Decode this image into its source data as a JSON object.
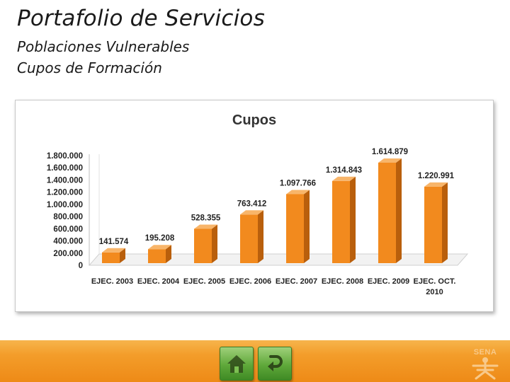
{
  "slide": {
    "title": "Portafolio de Servicios",
    "subtitle1": "Poblaciones Vulnerables",
    "subtitle2": "Cupos de Formación"
  },
  "chart_data": {
    "type": "bar",
    "title": "Cupos",
    "categories": [
      "EJEC. 2003",
      "EJEC. 2004",
      "EJEC. 2005",
      "EJEC. 2006",
      "EJEC. 2007",
      "EJEC. 2008",
      "EJEC. 2009",
      "EJEC. OCT. 2010"
    ],
    "category_lines": [
      [
        "EJEC. 2003"
      ],
      [
        "EJEC. 2004"
      ],
      [
        "EJEC. 2005"
      ],
      [
        "EJEC. 2006"
      ],
      [
        "EJEC. 2007"
      ],
      [
        "EJEC. 2008"
      ],
      [
        "EJEC. 2009"
      ],
      [
        "EJEC. OCT.",
        "2010"
      ]
    ],
    "values": [
      141574,
      195208,
      528355,
      763412,
      1097766,
      1314843,
      1614879,
      1220991
    ],
    "value_labels": [
      "141.574",
      "195.208",
      "528.355",
      "763.412",
      "1.097.766",
      "1.314.843",
      "1.614.879",
      "1.220.991"
    ],
    "yticks": [
      0,
      200000,
      400000,
      600000,
      800000,
      1000000,
      1200000,
      1400000,
      1600000,
      1800000
    ],
    "ytick_labels": [
      "0",
      "200.000",
      "400.000",
      "600.000",
      "800.000",
      "1.000.000",
      "1.200.000",
      "1.400.000",
      "1.600.000",
      "1.800.000"
    ],
    "ylim": [
      0,
      1800000
    ],
    "xlabel": "",
    "ylabel": "",
    "grid": false,
    "legend": "none",
    "bar_color": "#f28a1e",
    "bar_side_color": "#b95f0c",
    "bar_top_color": "#f8b56a"
  },
  "footer": {
    "home_icon": "home-icon",
    "return_icon": "return-arrow-icon",
    "logo_text": "SENA",
    "color": "#f39d2a"
  }
}
